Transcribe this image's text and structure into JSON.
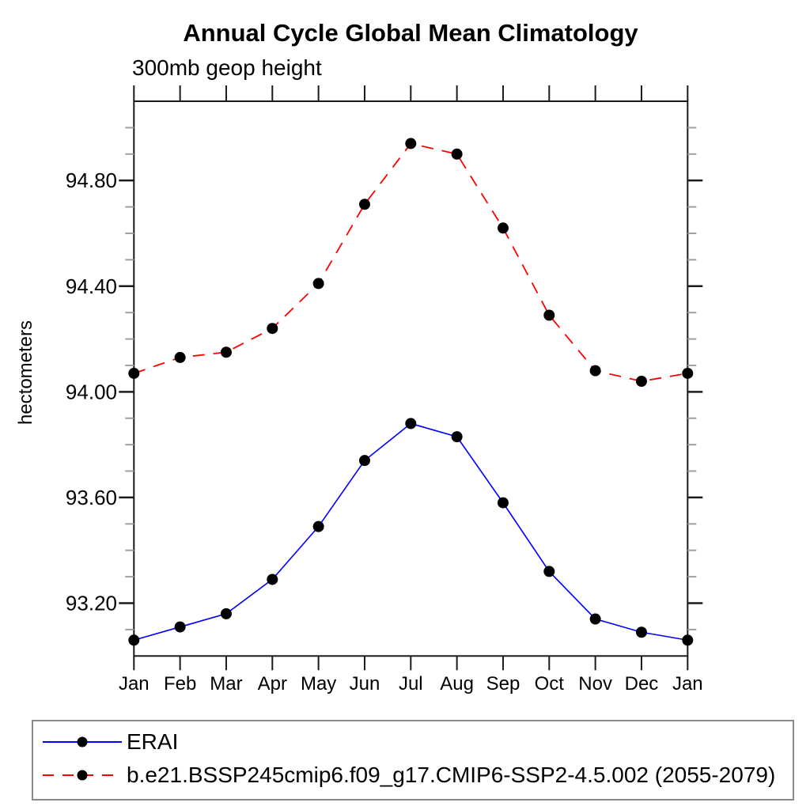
{
  "chart_data": {
    "type": "line",
    "title": "Annual Cycle Global Mean Climatology",
    "subtitle": "300mb geop height",
    "ylabel": "hectometers",
    "categories": [
      "Jan",
      "Feb",
      "Mar",
      "Apr",
      "May",
      "Jun",
      "Jul",
      "Aug",
      "Sep",
      "Oct",
      "Nov",
      "Dec",
      "Jan"
    ],
    "ylim": [
      93.0,
      95.1
    ],
    "yticks_major": [
      93.2,
      93.6,
      94.0,
      94.4,
      94.8
    ],
    "ytick_minor_step": 0.1,
    "grid": false,
    "legend_position": "bottom-left-box",
    "axis_color": "#1a1a1a",
    "minor_tick_color": "#a0a0a0",
    "marker_color": "#000000",
    "series": [
      {
        "name": "ERAI",
        "color": "#0000ff",
        "line_style": "solid",
        "marker": "filled-circle",
        "values": [
          93.06,
          93.11,
          93.16,
          93.29,
          93.49,
          93.74,
          93.88,
          93.83,
          93.58,
          93.32,
          93.14,
          93.09,
          93.06
        ]
      },
      {
        "name": "b.e21.BSSP245cmip6.f09_g17.CMIP6-SSP2-4.5.002 (2055-2079)",
        "color": "#ff0000",
        "line_style": "dashed",
        "marker": "filled-circle",
        "values": [
          94.07,
          94.13,
          94.15,
          94.24,
          94.41,
          94.71,
          94.94,
          94.9,
          94.62,
          94.29,
          94.08,
          94.04,
          94.07
        ]
      }
    ]
  }
}
